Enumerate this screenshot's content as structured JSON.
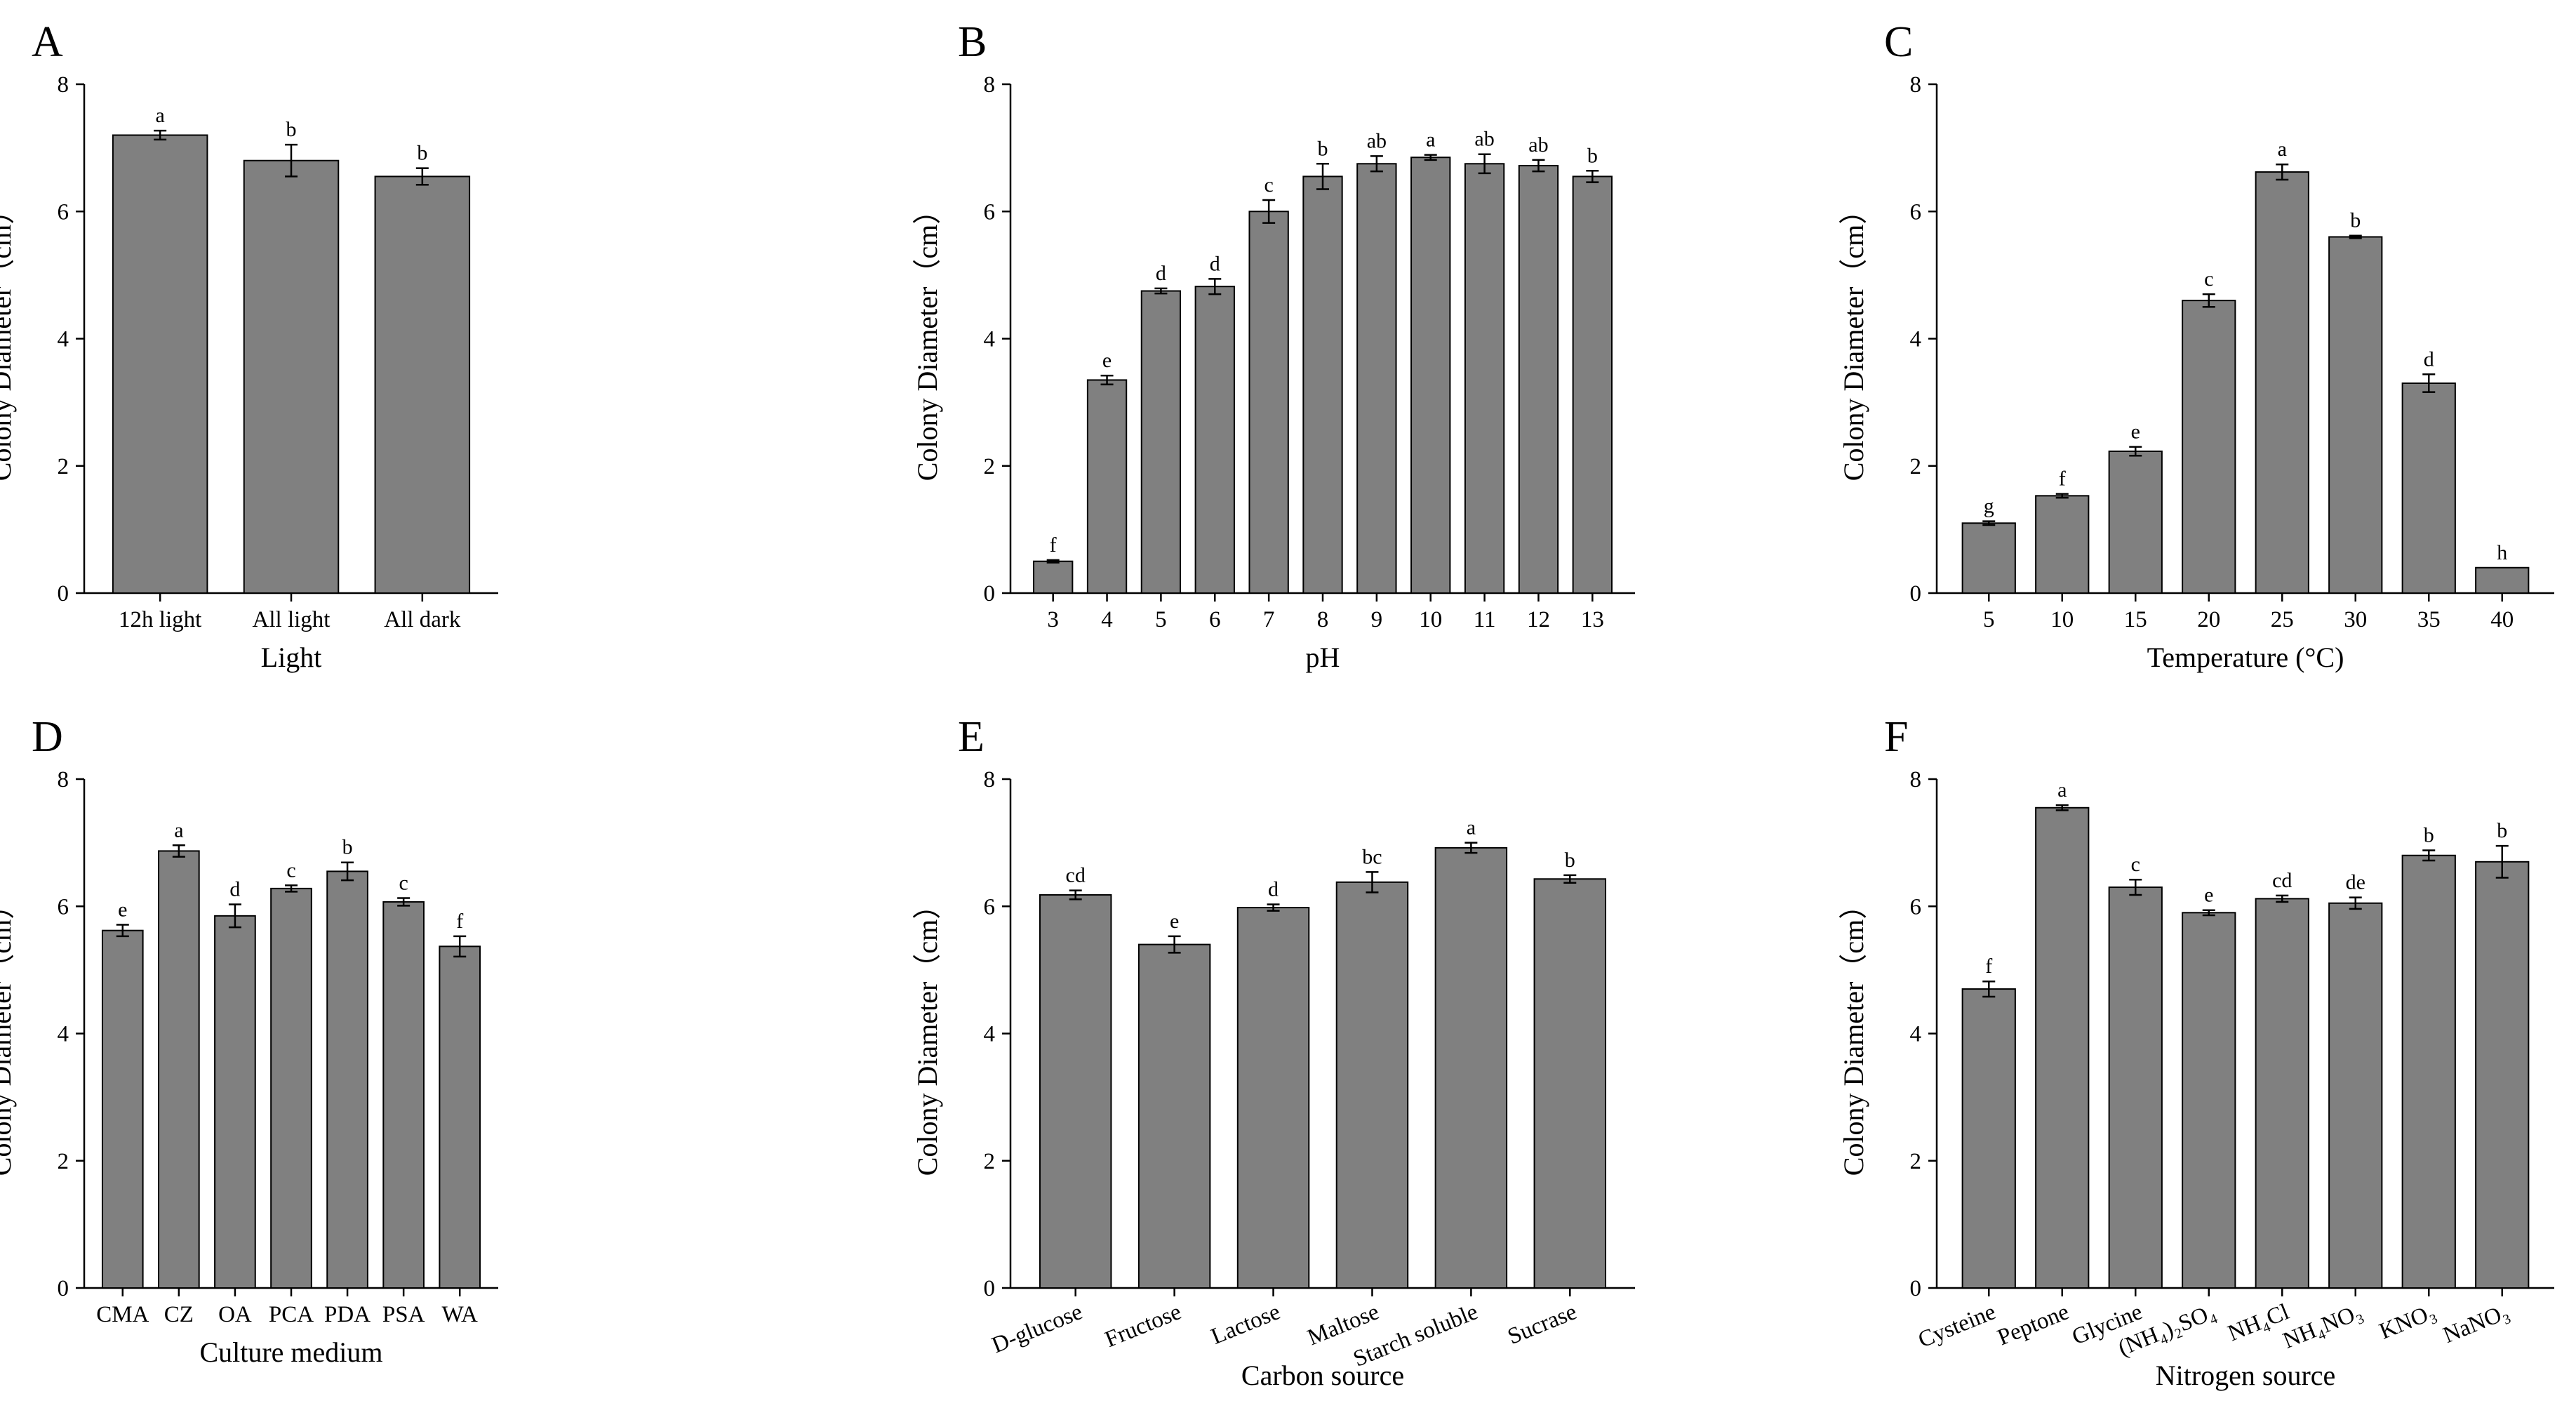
{
  "figure": {
    "chart_data": [
      {
        "type": "bar",
        "panel": "A",
        "title": "",
        "xlabel": "Light",
        "ylabel": "Colony Diameter（cm）",
        "ylim": [
          0,
          8
        ],
        "yticks": [
          0,
          2,
          4,
          6,
          8
        ],
        "categories": [
          "12h light",
          "All light",
          "All dark"
        ],
        "values": [
          7.2,
          6.8,
          6.55
        ],
        "errors": [
          0.07,
          0.25,
          0.13
        ],
        "significance": [
          "a",
          "b",
          "b"
        ],
        "rotate_labels": false
      },
      {
        "type": "bar",
        "panel": "B",
        "title": "",
        "xlabel": "pH",
        "ylabel": "Colony Diameter（cm）",
        "ylim": [
          0,
          8
        ],
        "yticks": [
          0,
          2,
          4,
          6,
          8
        ],
        "categories": [
          "3",
          "4",
          "5",
          "6",
          "7",
          "8",
          "9",
          "10",
          "11",
          "12",
          "13"
        ],
        "values": [
          0.5,
          3.35,
          4.75,
          4.82,
          6.0,
          6.55,
          6.75,
          6.85,
          6.75,
          6.72,
          6.55
        ],
        "errors": [
          0.02,
          0.07,
          0.04,
          0.12,
          0.18,
          0.2,
          0.12,
          0.04,
          0.15,
          0.09,
          0.09
        ],
        "significance": [
          "f",
          "e",
          "d",
          "d",
          "c",
          "b",
          "ab",
          "a",
          "ab",
          "ab",
          "b"
        ],
        "rotate_labels": false
      },
      {
        "type": "bar",
        "panel": "C",
        "title": "",
        "xlabel": "Temperature (°C)",
        "ylabel": "Colony Diameter（cm）",
        "ylim": [
          0,
          8
        ],
        "yticks": [
          0,
          2,
          4,
          6,
          8
        ],
        "categories": [
          "5",
          "10",
          "15",
          "20",
          "25",
          "30",
          "35",
          "40"
        ],
        "values": [
          1.1,
          1.53,
          2.23,
          4.6,
          6.62,
          5.6,
          3.3,
          0.4
        ],
        "errors": [
          0.03,
          0.03,
          0.07,
          0.1,
          0.12,
          0.02,
          0.14,
          0.0
        ],
        "significance": [
          "g",
          "f",
          "e",
          "c",
          "a",
          "b",
          "d",
          "h"
        ],
        "rotate_labels": false
      },
      {
        "type": "bar",
        "panel": "D",
        "title": "",
        "xlabel": "Culture medium",
        "ylabel": "Colony Diameter（cm）",
        "ylim": [
          0,
          8
        ],
        "yticks": [
          0,
          2,
          4,
          6,
          8
        ],
        "categories": [
          "CMA",
          "CZ",
          "OA",
          "PCA",
          "PDA",
          "PSA",
          "WA"
        ],
        "values": [
          5.62,
          6.87,
          5.85,
          6.28,
          6.55,
          6.07,
          5.37
        ],
        "errors": [
          0.09,
          0.09,
          0.18,
          0.05,
          0.14,
          0.06,
          0.16
        ],
        "significance": [
          "e",
          "a",
          "d",
          "c",
          "b",
          "c",
          "f"
        ],
        "rotate_labels": false
      },
      {
        "type": "bar",
        "panel": "E",
        "title": "",
        "xlabel": "Carbon source",
        "ylabel": "Colony Diameter（cm）",
        "ylim": [
          0,
          8
        ],
        "yticks": [
          0,
          2,
          4,
          6,
          8
        ],
        "categories": [
          "D-glucose",
          "Fructose",
          "Lactose",
          "Maltose",
          "Starch soluble",
          "Sucrase"
        ],
        "values": [
          6.18,
          5.4,
          5.98,
          6.38,
          6.92,
          6.43
        ],
        "errors": [
          0.07,
          0.13,
          0.05,
          0.16,
          0.08,
          0.06
        ],
        "significance": [
          "cd",
          "e",
          "d",
          "bc",
          "a",
          "b"
        ],
        "rotate_labels": true
      },
      {
        "type": "bar",
        "panel": "F",
        "title": "",
        "xlabel": "Nitrogen source",
        "ylabel": "Colony Diameter（cm）",
        "ylim": [
          0,
          8
        ],
        "yticks": [
          0,
          2,
          4,
          6,
          8
        ],
        "categories": [
          "Cysteine",
          "Peptone",
          "Glycine",
          "(NH₄)₂SO₄",
          "NH₄Cl",
          "NH₄NO₃",
          "KNO₃",
          "NaNO₃"
        ],
        "values": [
          4.7,
          7.55,
          6.3,
          5.9,
          6.12,
          6.05,
          6.8,
          6.7
        ],
        "errors": [
          0.12,
          0.04,
          0.12,
          0.04,
          0.05,
          0.09,
          0.08,
          0.25
        ],
        "significance": [
          "f",
          "a",
          "c",
          "e",
          "cd",
          "de",
          "b",
          "b"
        ],
        "rotate_labels": true
      }
    ]
  },
  "colors": {
    "bar_fill": "#808080",
    "bar_stroke": "#000000",
    "text": "#000000",
    "background": "#ffffff"
  }
}
